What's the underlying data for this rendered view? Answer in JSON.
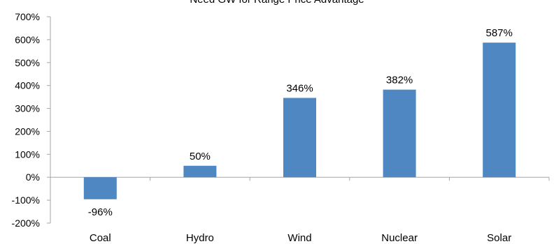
{
  "chart_data": {
    "type": "bar",
    "title": "Need GW for Range Price Advantage",
    "categories": [
      "Coal",
      "Hydro",
      "Wind",
      "Nuclear",
      "Solar"
    ],
    "values": [
      -96,
      50,
      346,
      382,
      587
    ],
    "data_labels": [
      "-96%",
      "50%",
      "346%",
      "382%",
      "587%"
    ],
    "xlabel": "",
    "ylabel": "",
    "ylim": [
      -200,
      700
    ],
    "yticks": [
      -200,
      -100,
      0,
      100,
      200,
      300,
      400,
      500,
      600,
      700
    ],
    "ytick_labels": [
      "-200%",
      "-100%",
      "0%",
      "100%",
      "200%",
      "300%",
      "400%",
      "500%",
      "600%",
      "700%"
    ],
    "grid": false,
    "legend": "none",
    "bar_color": "#4f87c2",
    "axis_color": "#a6a6a6"
  }
}
